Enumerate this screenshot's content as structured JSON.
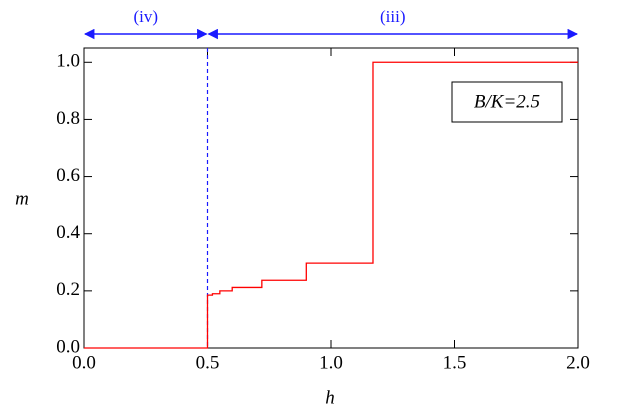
{
  "chart_data": {
    "type": "step",
    "xlabel": "h",
    "ylabel": "m",
    "xlim": [
      0,
      2.0
    ],
    "ylim": [
      0,
      1.05
    ],
    "xticks": [
      {
        "value": 0,
        "label": "0.0"
      },
      {
        "value": 0.5,
        "label": "0.5"
      },
      {
        "value": 1.0,
        "label": "1.0"
      },
      {
        "value": 1.5,
        "label": "1.5"
      },
      {
        "value": 2.0,
        "label": "2.0"
      }
    ],
    "yticks": [
      {
        "value": 0,
        "label": "0.0"
      },
      {
        "value": 0.2,
        "label": "0.2"
      },
      {
        "value": 0.4,
        "label": "0.4"
      },
      {
        "value": 0.6,
        "label": "0.6"
      },
      {
        "value": 0.8,
        "label": "0.8"
      },
      {
        "value": 1.0,
        "label": "1.0"
      }
    ],
    "series": [
      {
        "color": "#ff0000",
        "x": [
          0,
          0.5,
          0.52,
          0.55,
          0.6,
          0.72,
          0.9,
          1.17,
          2.0
        ],
        "values": [
          0,
          0.185,
          0.19,
          0.2,
          0.212,
          0.237,
          0.297,
          1.0,
          1.0
        ]
      }
    ],
    "vline": {
      "x": 0.5,
      "color": "#1a1aff"
    },
    "regions": [
      {
        "label": "(iv)",
        "range": [
          0,
          0.5
        ],
        "color": "#1a1aff"
      },
      {
        "label": "(iii)",
        "range": [
          0.5,
          2.0
        ],
        "color": "#1a1aff"
      }
    ],
    "annotation": "B/K=2.5"
  }
}
